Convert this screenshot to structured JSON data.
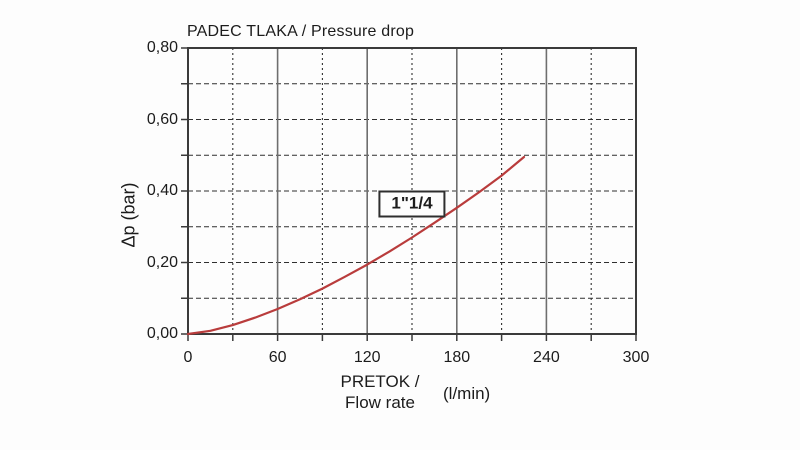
{
  "chart_data": {
    "type": "line",
    "title": "PADEC TLAKA / Pressure drop",
    "xlabel_line1": "PRETOK /",
    "xlabel_line2": "Flow rate",
    "x_unit": "(l/min)",
    "ylabel": "Δp (bar)",
    "xlim": [
      0,
      300
    ],
    "ylim": [
      0,
      0.8
    ],
    "x_major_ticks": [
      0,
      60,
      120,
      180,
      240,
      300
    ],
    "x_tick_labels": [
      "0",
      "60",
      "120",
      "180",
      "240",
      "300"
    ],
    "x_minor_step": 30,
    "y_major_ticks": [
      0,
      0.2,
      0.4,
      0.6,
      0.8
    ],
    "y_tick_labels": [
      "0,00",
      "0,20",
      "0,40",
      "0,60",
      "0,80"
    ],
    "y_minor_step": 0.1,
    "grid": {
      "horizontal_minor": "dashed",
      "vertical_major": "solid",
      "vertical_minor": "dashed"
    },
    "legend_position": "annotation-box-on-plot",
    "series": [
      {
        "name": "1\"1/4",
        "color": "#b93c3c",
        "x": [
          0,
          15,
          30,
          45,
          60,
          75,
          90,
          105,
          120,
          135,
          150,
          165,
          180,
          195,
          210,
          225
        ],
        "y": [
          0,
          0.009,
          0.025,
          0.046,
          0.07,
          0.097,
          0.127,
          0.16,
          0.194,
          0.231,
          0.27,
          0.311,
          0.353,
          0.397,
          0.443,
          0.495
        ]
      }
    ],
    "annotation": {
      "label": "1\"1/4",
      "x": 150,
      "y": 0.365
    }
  },
  "colors": {
    "curve": "#b93c3c",
    "border": "#3a3a3a",
    "grid_major": "#6e6e6e",
    "grid_dashed": "#2f2f2f",
    "text": "#1c1c1c",
    "background": "#fdfdfd"
  }
}
